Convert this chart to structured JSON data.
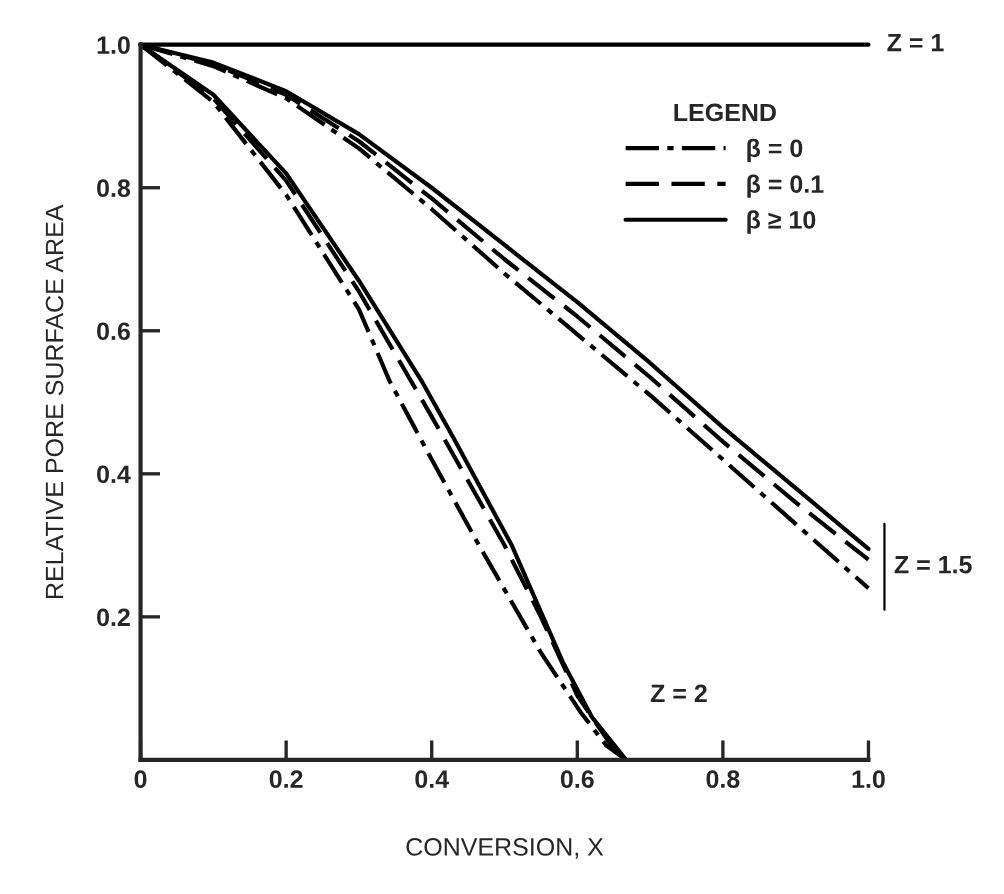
{
  "chart_data": {
    "type": "line",
    "xlabel": "CONVERSION, X",
    "ylabel": "RELATIVE PORE SURFACE AREA",
    "legend_title": "LEGEND",
    "xlim": [
      0,
      1.0
    ],
    "ylim": [
      0,
      1.0
    ],
    "xticks": [
      0,
      0.2,
      0.4,
      0.6,
      0.8,
      {
        "value": 1.0,
        "label": "1.0"
      }
    ],
    "yticks": [
      0.2,
      0.4,
      0.6,
      0.8,
      {
        "value": 1.0,
        "label": "1.0"
      }
    ],
    "grid": false,
    "legend": "top right",
    "marker": "none",
    "series": [
      {
        "color": "#000000",
        "line_style": "solid",
        "x": [
          0,
          1.0
        ],
        "values": [
          1.0,
          1.0
        ]
      },
      {
        "name": "β = 0",
        "color": "#000000",
        "line_style": "dashdot",
        "x": [
          0,
          0.1,
          0.2,
          0.3,
          0.4,
          0.5,
          0.6,
          0.7,
          0.8,
          0.9,
          1.0
        ],
        "values": [
          1.0,
          0.97,
          0.925,
          0.855,
          0.77,
          0.68,
          0.595,
          0.51,
          0.42,
          0.33,
          0.24
        ]
      },
      {
        "name": "β = 0.1",
        "color": "#000000",
        "line_style": "dashed",
        "x": [
          0,
          0.1,
          0.2,
          0.3,
          0.4,
          0.5,
          0.6,
          0.7,
          0.8,
          0.9,
          1.0
        ],
        "values": [
          1.0,
          0.973,
          0.93,
          0.865,
          0.785,
          0.7,
          0.62,
          0.535,
          0.445,
          0.36,
          0.28
        ]
      },
      {
        "name": "β ≥ 10",
        "color": "#000000",
        "line_style": "solid",
        "x": [
          0,
          0.1,
          0.2,
          0.3,
          0.4,
          0.5,
          0.6,
          0.7,
          0.8,
          0.9,
          1.0
        ],
        "values": [
          1.0,
          0.975,
          0.935,
          0.875,
          0.8,
          0.72,
          0.64,
          0.555,
          0.465,
          0.38,
          0.295
        ]
      },
      {
        "color": "#000000",
        "line_style": "dashdot",
        "x": [
          0,
          0.1,
          0.2,
          0.3,
          0.342,
          0.4,
          0.465,
          0.55,
          0.605,
          0.64,
          0.667
        ],
        "values": [
          1.0,
          0.92,
          0.79,
          0.63,
          0.53,
          0.42,
          0.3,
          0.15,
          0.066,
          0.02,
          0.0
        ]
      },
      {
        "color": "#000000",
        "line_style": "dashed",
        "x": [
          0,
          0.1,
          0.2,
          0.3,
          0.4,
          0.5,
          0.55,
          0.6,
          0.64,
          0.66
        ],
        "values": [
          1.0,
          0.925,
          0.81,
          0.655,
          0.48,
          0.3,
          0.2,
          0.09,
          0.03,
          0.0
        ]
      },
      {
        "color": "#000000",
        "line_style": "solid",
        "x": [
          0,
          0.1,
          0.2,
          0.3,
          0.386,
          0.43,
          0.51,
          0.58,
          0.62,
          0.667
        ],
        "values": [
          1.0,
          0.93,
          0.82,
          0.67,
          0.53,
          0.45,
          0.3,
          0.137,
          0.06,
          0.0
        ]
      }
    ],
    "annotations": [
      "Z = 1",
      "Z = 1.5",
      "Z = 2"
    ]
  }
}
